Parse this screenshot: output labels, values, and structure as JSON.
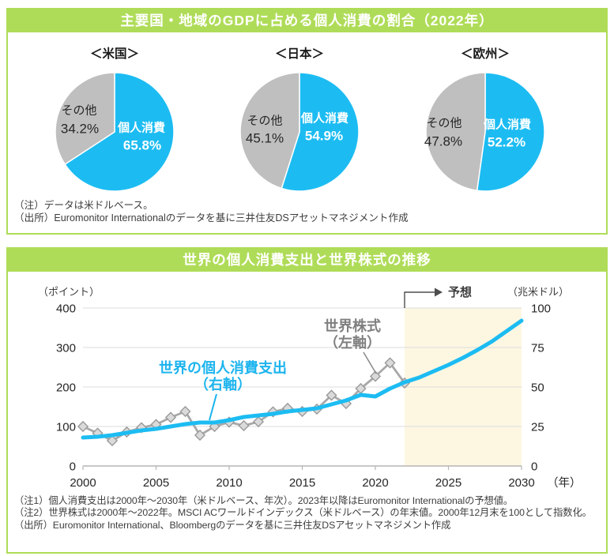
{
  "page": {
    "accent_green": "#afdc58",
    "accent_blue": "#1cbcf2",
    "other_gray": "#bfbfbf"
  },
  "panel1": {
    "title": "主要国・地域のGDPに占める個人消費の割合（2022年）",
    "pies": [
      {
        "region": "＜米国＞",
        "other_label": "その他",
        "other_pct": "34.2%",
        "cons_label": "個人消費",
        "cons_pct": "65.8%"
      },
      {
        "region": "＜日本＞",
        "other_label": "その他",
        "other_pct": "45.1%",
        "cons_label": "個人消費",
        "cons_pct": "54.9%"
      },
      {
        "region": "＜欧州＞",
        "other_label": "その他",
        "other_pct": "47.8%",
        "cons_label": "個人消費",
        "cons_pct": "52.2%"
      }
    ],
    "notes": [
      "（注）データは米ドルベース。",
      "（出所）Euromonitor Internationalのデータを基に三井住友DSアセットマネジメント作成"
    ]
  },
  "panel2": {
    "title": "世界の個人消費支出と世界株式の推移",
    "left_axis_unit": "（ポイント）",
    "right_axis_unit": "（兆米ドル）",
    "x_axis_unit": "（年）",
    "forecast_label": "予想",
    "stock_label": [
      "世界株式",
      "（左軸）"
    ],
    "consumption_label": [
      "世界の個人消費支出",
      "（右軸）"
    ],
    "notes": [
      "（注1）個人消費支出は2000年～2030年（米ドルベース、年次）。2023年以降はEuromonitor Internationalの予想値。",
      "（注2）世界株式は2000年～2022年。MSCI ACワールドインデックス（米ドルベース）の年末値。2000年12月末を100として指数化。",
      "（出所）Euromonitor International、Bloombergのデータを基に三井住友DSアセットマネジメント作成"
    ]
  },
  "chart_data": [
    {
      "type": "pie",
      "title": "＜米国＞",
      "labels": [
        "個人消費",
        "その他"
      ],
      "values": [
        65.8,
        34.2
      ],
      "unit": "%",
      "colors": [
        "#1cbcf2",
        "#bfbfbf"
      ]
    },
    {
      "type": "pie",
      "title": "＜日本＞",
      "labels": [
        "個人消費",
        "その他"
      ],
      "values": [
        54.9,
        45.1
      ],
      "unit": "%",
      "colors": [
        "#1cbcf2",
        "#bfbfbf"
      ]
    },
    {
      "type": "pie",
      "title": "＜欧州＞",
      "labels": [
        "個人消費",
        "その他"
      ],
      "values": [
        52.2,
        47.8
      ],
      "unit": "%",
      "colors": [
        "#1cbcf2",
        "#bfbfbf"
      ]
    },
    {
      "type": "line",
      "title": "世界の個人消費支出と世界株式の推移",
      "xlim": [
        2000,
        2030
      ],
      "x_ticks": [
        2000,
        2005,
        2010,
        2015,
        2020,
        2025,
        2030
      ],
      "left_axis": {
        "label": "（ポイント）",
        "lim": [
          0,
          400
        ],
        "ticks": [
          0,
          100,
          200,
          300,
          400
        ]
      },
      "right_axis": {
        "label": "（兆米ドル）",
        "lim": [
          0,
          100
        ],
        "ticks": [
          0,
          25,
          50,
          75,
          100
        ]
      },
      "forecast_start": 2022,
      "forecast_color": "#fdf7e2",
      "grid": true,
      "series": [
        {
          "name": "世界株式（左軸）",
          "axis": "left",
          "color": "#a8a8a8",
          "marker": "diamond",
          "x_start": 2000,
          "values": [
            100,
            83,
            64,
            86,
            97,
            105,
            123,
            138,
            78,
            100,
            111,
            102,
            112,
            137,
            146,
            138,
            144,
            179,
            158,
            196,
            227,
            261,
            210
          ]
        },
        {
          "name": "世界の個人消費支出（右軸）",
          "axis": "right",
          "color": "#1cbcf2",
          "marker": "none",
          "x_start": 2000,
          "values": [
            18,
            18.5,
            19.5,
            21,
            22.5,
            23.5,
            25,
            26.5,
            27.5,
            27.5,
            29,
            31,
            32,
            33,
            34.5,
            35.5,
            36.5,
            39,
            41.5,
            45,
            44,
            49,
            53,
            56,
            60,
            64,
            68.5,
            73.5,
            79,
            85.5,
            92
          ]
        }
      ]
    }
  ]
}
